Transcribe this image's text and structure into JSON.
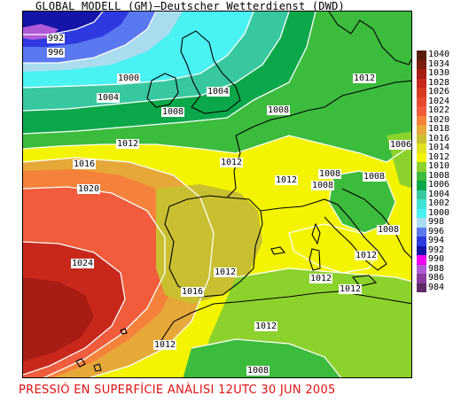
{
  "title": "GLOBAL MODELL (GM)—Deutscher Wetterdienst (DWD)",
  "caption": "PRESSIÓ EN SUPERFÍCIE   ANÀLISI 12UTC 30 JUN 2005",
  "colors": {
    "land_outline": "#000000",
    "isobar_line": "#ffffff",
    "caption": "#e01010"
  },
  "legend": [
    {
      "label": "1040",
      "color": "#5a1e0e"
    },
    {
      "label": "1034",
      "color": "#7a1e10"
    },
    {
      "label": "1030",
      "color": "#a81c14"
    },
    {
      "label": "1028",
      "color": "#c8281c"
    },
    {
      "label": "1026",
      "color": "#d83a22"
    },
    {
      "label": "1024",
      "color": "#e64a2e"
    },
    {
      "label": "1022",
      "color": "#f05c3c"
    },
    {
      "label": "1020",
      "color": "#f5823a"
    },
    {
      "label": "1018",
      "color": "#e6a838"
    },
    {
      "label": "1016",
      "color": "#c8c030"
    },
    {
      "label": "1014",
      "color": "#e2e220"
    },
    {
      "label": "1012",
      "color": "#f4f400"
    },
    {
      "label": "1010",
      "color": "#8cd22c"
    },
    {
      "label": "1008",
      "color": "#3cbc3c"
    },
    {
      "label": "1006",
      "color": "#0aa84a"
    },
    {
      "label": "1004",
      "color": "#38c8a0"
    },
    {
      "label": "1002",
      "color": "#40e2d2"
    },
    {
      "label": "1000",
      "color": "#4af2f2"
    },
    {
      "label": "998",
      "color": "#aadcf0"
    },
    {
      "label": "996",
      "color": "#5a78f0"
    },
    {
      "label": "994",
      "color": "#2e3ae0"
    },
    {
      "label": "992",
      "color": "#1414a8"
    },
    {
      "label": "990",
      "color": "#f000f0"
    },
    {
      "label": "988",
      "color": "#b05ad8"
    },
    {
      "label": "986",
      "color": "#8a3c9c"
    },
    {
      "label": "984",
      "color": "#5e2a66"
    }
  ],
  "isobar_labels": [
    {
      "text": "992"
    },
    {
      "text": "996"
    },
    {
      "text": "1000"
    },
    {
      "text": "1004"
    },
    {
      "text": "1004"
    },
    {
      "text": "1008"
    },
    {
      "text": "1008"
    },
    {
      "text": "1012"
    },
    {
      "text": "1012"
    },
    {
      "text": "1016"
    },
    {
      "text": "1020"
    },
    {
      "text": "1012"
    },
    {
      "text": "1012"
    },
    {
      "text": "1008"
    },
    {
      "text": "1008"
    },
    {
      "text": "1008"
    },
    {
      "text": "1008"
    },
    {
      "text": "1006"
    },
    {
      "text": "1024"
    },
    {
      "text": "1012"
    },
    {
      "text": "1016"
    },
    {
      "text": "1012"
    },
    {
      "text": "1012"
    },
    {
      "text": "1012"
    },
    {
      "text": "1012"
    },
    {
      "text": "1012"
    },
    {
      "text": "1008"
    }
  ]
}
